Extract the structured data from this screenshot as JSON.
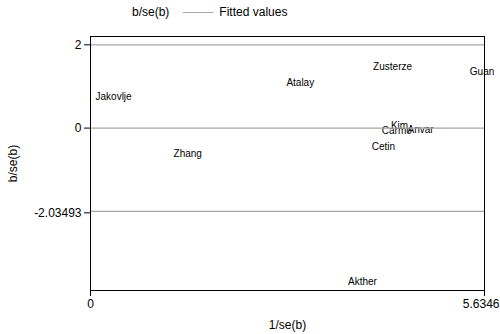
{
  "chart_data": {
    "type": "scatter",
    "x_label": "1/se(b)",
    "y_label": "b/se(b)",
    "xlim": [
      0,
      5.63469
    ],
    "xticks": [
      0,
      5.63469
    ],
    "ylim": [
      -3.9,
      2.2
    ],
    "yticks": [
      2,
      0,
      -2.03493
    ],
    "reference_lines": [
      2,
      -2
    ],
    "legend": "top",
    "series": [
      {
        "name": "b/se(b)",
        "type": "scatter",
        "marker": "label",
        "color": "#000000",
        "labels": [
          "Jakovlje",
          "Zhang",
          "Atalay",
          "Zusterze",
          "Guan",
          "Kim",
          "Carmo",
          "Anvar",
          "Cetin",
          "Akther"
        ],
        "x": [
          0.33,
          1.39,
          3.0,
          4.32,
          5.6,
          4.42,
          4.38,
          4.72,
          4.19,
          3.89
        ],
        "values": [
          0.74,
          -0.62,
          1.08,
          1.47,
          1.36,
          0.05,
          -0.07,
          -0.05,
          -0.46,
          -3.7
        ]
      },
      {
        "name": "Fitted values",
        "type": "line",
        "color": "#a6a6a6",
        "x": [
          0,
          5.63469
        ],
        "values": [
          0,
          0
        ]
      }
    ]
  }
}
